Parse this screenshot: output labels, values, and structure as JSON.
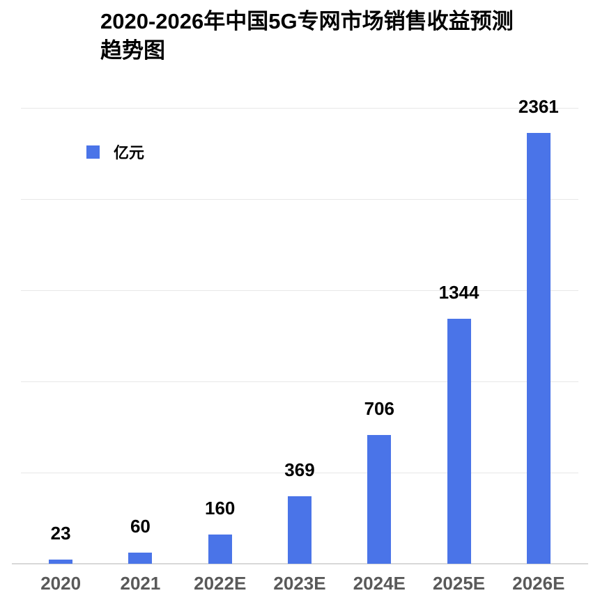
{
  "title": "2020-2026年中国5G专网市场销售收益预测趋势图",
  "legend": {
    "label": "亿元"
  },
  "colors": {
    "bar": "#4A74E8",
    "gridline": "#E7E7E7",
    "axis_line": "#D8D8D8",
    "axis_label": "#595959",
    "value_label": "#000000",
    "background": "#FFFFFF"
  },
  "chart_data": {
    "type": "bar",
    "title": "2020-2026年中国5G专网市场销售收益预测趋势图",
    "categories": [
      "2020",
      "2021",
      "2022E",
      "2023E",
      "2024E",
      "2025E",
      "2026E"
    ],
    "series": [
      {
        "name": "亿元",
        "values": [
          23,
          60,
          160,
          369,
          706,
          1344,
          2361
        ]
      }
    ],
    "xlabel": "",
    "ylabel": "",
    "ylim": [
      0,
      2500
    ],
    "gridline_step": 500,
    "grid": true,
    "y_tick_labels_visible": false,
    "value_labels": true,
    "legend_position": "top-left"
  }
}
